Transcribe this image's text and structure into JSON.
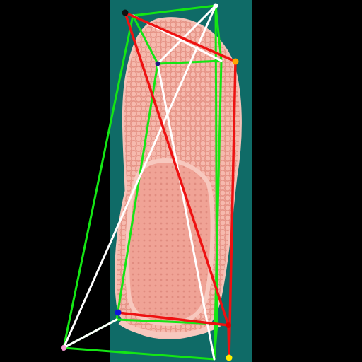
{
  "scene": {
    "description_free": true,
    "colors": {
      "outer_background": "#000000",
      "backdrop": "#0f6b67",
      "shoe_body": "#f3b3a8",
      "shoe_shadow": "#e79a8e",
      "insole": "#f0a095",
      "edge_green": "#14e614",
      "edge_white": "#ffffff",
      "edge_red": "#ee1111"
    }
  },
  "keypoints": [
    {
      "name": "kp-black",
      "color": "#111111"
    },
    {
      "name": "kp-white-top",
      "color": "#ffffff"
    },
    {
      "name": "kp-orange",
      "color": "#ffa500"
    },
    {
      "name": "kp-navy",
      "color": "#1c1c80"
    },
    {
      "name": "kp-blue",
      "color": "#1111dd"
    },
    {
      "name": "kp-pink",
      "color": "#f39ad0"
    },
    {
      "name": "kp-red",
      "color": "#dd0000"
    },
    {
      "name": "kp-yellow",
      "color": "#ffee00"
    }
  ]
}
